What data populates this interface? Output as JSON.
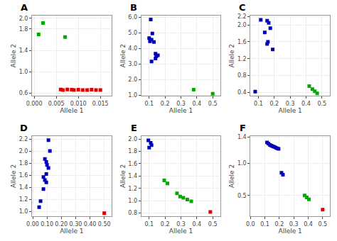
{
  "chart_data": [
    {
      "type": "scatter",
      "title": "A",
      "xlabel": "Allele 1",
      "ylabel": "Allele 2",
      "marker": "square",
      "grid": true,
      "x": [
        0.002,
        0.001,
        0.007,
        0.006,
        0.0065,
        0.0075,
        0.0085,
        0.009,
        0.01,
        0.011,
        0.012,
        0.013,
        0.014,
        0.015
      ],
      "values": [
        1.91,
        1.7,
        1.65,
        0.67,
        0.66,
        0.67,
        0.665,
        0.66,
        0.665,
        0.66,
        0.66,
        0.665,
        0.66,
        0.66
      ],
      "colors": [
        "#00aa00",
        "#00aa00",
        "#00aa00",
        "#dd0000",
        "#dd0000",
        "#dd0000",
        "#dd0000",
        "#dd0000",
        "#dd0000",
        "#dd0000",
        "#dd0000",
        "#dd0000",
        "#dd0000",
        "#dd0000"
      ],
      "xlim": [
        -0.0005,
        0.0175
      ],
      "ylim": [
        0.55,
        2.05
      ],
      "xticks": [
        {
          "value": 0.0,
          "label": "0.000"
        },
        0.005,
        {
          "value": 0.01,
          "label": "0.010"
        },
        0.015
      ],
      "yticks": [
        0.6,
        {
          "value": 1.0,
          "label": "1.0"
        },
        1.4,
        1.8,
        {
          "value": 2.0,
          "label": "2.0"
        }
      ]
    },
    {
      "type": "scatter",
      "title": "B",
      "xlabel": "Allele 1",
      "ylabel": "Allele 2",
      "marker": "square",
      "grid": true,
      "x": [
        0.11,
        0.12,
        0.1,
        0.115,
        0.105,
        0.13,
        0.14,
        0.155,
        0.145,
        0.14,
        0.115,
        0.38,
        0.5
      ],
      "values": [
        5.85,
        4.95,
        4.65,
        4.55,
        4.45,
        4.4,
        3.65,
        3.55,
        3.48,
        3.35,
        3.15,
        1.35,
        1.08
      ],
      "colors": [
        "#0000bb",
        "#0000bb",
        "#0000bb",
        "#0000bb",
        "#0000bb",
        "#0000bb",
        "#0000bb",
        "#0000bb",
        "#0000bb",
        "#0000bb",
        "#0000bb",
        "#00aa00",
        "#00aa00"
      ],
      "xlim": [
        0.05,
        0.55
      ],
      "ylim": [
        0.95,
        6.1
      ],
      "xticks": [
        0.1,
        0.2,
        0.3,
        0.4,
        0.5
      ],
      "yticks": [
        {
          "value": 1.0,
          "label": "1.0"
        },
        {
          "value": 2.0,
          "label": "2.0"
        },
        {
          "value": 3.0,
          "label": "3.0"
        },
        {
          "value": 4.0,
          "label": "4.0"
        },
        {
          "value": 5.0,
          "label": "5.0"
        },
        {
          "value": 6.0,
          "label": "6.0"
        }
      ]
    },
    {
      "type": "scatter",
      "title": "C",
      "xlabel": "Allele 1",
      "ylabel": "Allele 2",
      "marker": "square",
      "grid": true,
      "x": [
        0.115,
        0.155,
        0.165,
        0.175,
        0.14,
        0.16,
        0.155,
        0.19,
        0.08,
        0.42,
        0.44,
        0.455,
        0.47
      ],
      "values": [
        2.12,
        2.1,
        2.05,
        1.92,
        1.82,
        1.6,
        1.55,
        1.42,
        0.42,
        0.55,
        0.48,
        0.43,
        0.38
      ],
      "colors": [
        "#0000bb",
        "#0000bb",
        "#0000bb",
        "#0000bb",
        "#0000bb",
        "#0000bb",
        "#0000bb",
        "#0000bb",
        "#0000bb",
        "#00aa00",
        "#00aa00",
        "#00aa00",
        "#00aa00"
      ],
      "xlim": [
        0.05,
        0.55
      ],
      "ylim": [
        0.32,
        2.22
      ],
      "xticks": [
        0.1,
        0.2,
        0.3,
        0.4,
        0.5
      ],
      "yticks": [
        0.4,
        0.8,
        1.2,
        1.6,
        {
          "value": 2.0,
          "label": "2.0"
        },
        2.2
      ]
    },
    {
      "type": "scatter",
      "title": "D",
      "xlabel": "Allele 1",
      "ylabel": "Allele 2",
      "marker": "square",
      "grid": true,
      "x": [
        0.11,
        0.12,
        0.085,
        0.095,
        0.1,
        0.11,
        0.095,
        0.075,
        0.085,
        0.095,
        0.075,
        0.055,
        0.045,
        0.5
      ],
      "values": [
        2.18,
        2.0,
        1.87,
        1.82,
        1.77,
        1.72,
        1.62,
        1.57,
        1.52,
        1.48,
        1.37,
        1.17,
        1.07,
        0.97
      ],
      "colors": [
        "#0000bb",
        "#0000bb",
        "#0000bb",
        "#0000bb",
        "#0000bb",
        "#0000bb",
        "#0000bb",
        "#0000bb",
        "#0000bb",
        "#0000bb",
        "#0000bb",
        "#0000bb",
        "#0000bb",
        "#dd0000"
      ],
      "xlim": [
        -0.005,
        0.55
      ],
      "ylim": [
        0.92,
        2.25
      ],
      "xticks": [
        {
          "value": 0.0,
          "label": "0.00"
        },
        {
          "value": 0.1,
          "label": "0.10"
        },
        {
          "value": 0.2,
          "label": "0.20"
        },
        {
          "value": 0.3,
          "label": "0.30"
        },
        {
          "value": 0.4,
          "label": "0.40"
        },
        {
          "value": 0.5,
          "label": "0.50"
        }
      ],
      "yticks": [
        {
          "value": 1.0,
          "label": "1.0"
        },
        1.2,
        1.4,
        1.6,
        1.8,
        {
          "value": 2.0,
          "label": "2.0"
        },
        2.2
      ]
    },
    {
      "type": "scatter",
      "title": "E",
      "xlabel": "Allele 1",
      "ylabel": "Allele 2",
      "marker": "square",
      "grid": true,
      "x": [
        0.095,
        0.11,
        0.115,
        0.1,
        0.195,
        0.215,
        0.275,
        0.295,
        0.315,
        0.34,
        0.365,
        0.485
      ],
      "values": [
        1.98,
        1.94,
        1.9,
        1.86,
        1.33,
        1.28,
        1.12,
        1.07,
        1.05,
        1.02,
        0.99,
        0.82
      ],
      "colors": [
        "#0000bb",
        "#0000bb",
        "#0000bb",
        "#0000bb",
        "#00aa00",
        "#00aa00",
        "#00aa00",
        "#00aa00",
        "#00aa00",
        "#00aa00",
        "#00aa00",
        "#dd0000"
      ],
      "xlim": [
        0.05,
        0.55
      ],
      "ylim": [
        0.75,
        2.05
      ],
      "xticks": [
        0.1,
        0.2,
        0.3,
        0.4,
        0.5
      ],
      "yticks": [
        0.8,
        {
          "value": 1.0,
          "label": "1.0"
        },
        1.2,
        1.4,
        1.6,
        1.8,
        {
          "value": 2.0,
          "label": "2.0"
        }
      ]
    },
    {
      "type": "scatter",
      "title": "F",
      "xlabel": "Allele 1",
      "ylabel": "Allele 2",
      "marker": "square",
      "grid": true,
      "x": [
        0.115,
        0.125,
        0.135,
        0.145,
        0.155,
        0.165,
        0.175,
        0.185,
        0.195,
        0.215,
        0.225,
        0.375,
        0.39,
        0.405,
        0.5
      ],
      "values": [
        1.32,
        1.3,
        1.28,
        1.27,
        1.26,
        1.25,
        1.24,
        1.23,
        1.22,
        0.85,
        0.82,
        0.5,
        0.47,
        0.44,
        0.28
      ],
      "colors": [
        "#0000bb",
        "#0000bb",
        "#0000bb",
        "#0000bb",
        "#0000bb",
        "#0000bb",
        "#0000bb",
        "#0000bb",
        "#0000bb",
        "#0000bb",
        "#0000bb",
        "#00aa00",
        "#00aa00",
        "#00aa00",
        "#dd0000"
      ],
      "xlim": [
        0.0,
        0.55
      ],
      "ylim": [
        0.18,
        1.42
      ],
      "xticks": [
        {
          "value": 0.0,
          "label": "0.0"
        },
        0.1,
        0.2,
        0.3,
        0.4,
        0.5
      ],
      "yticks": [
        0.5,
        {
          "value": 1.0,
          "label": "1.0"
        },
        1.4
      ]
    }
  ]
}
